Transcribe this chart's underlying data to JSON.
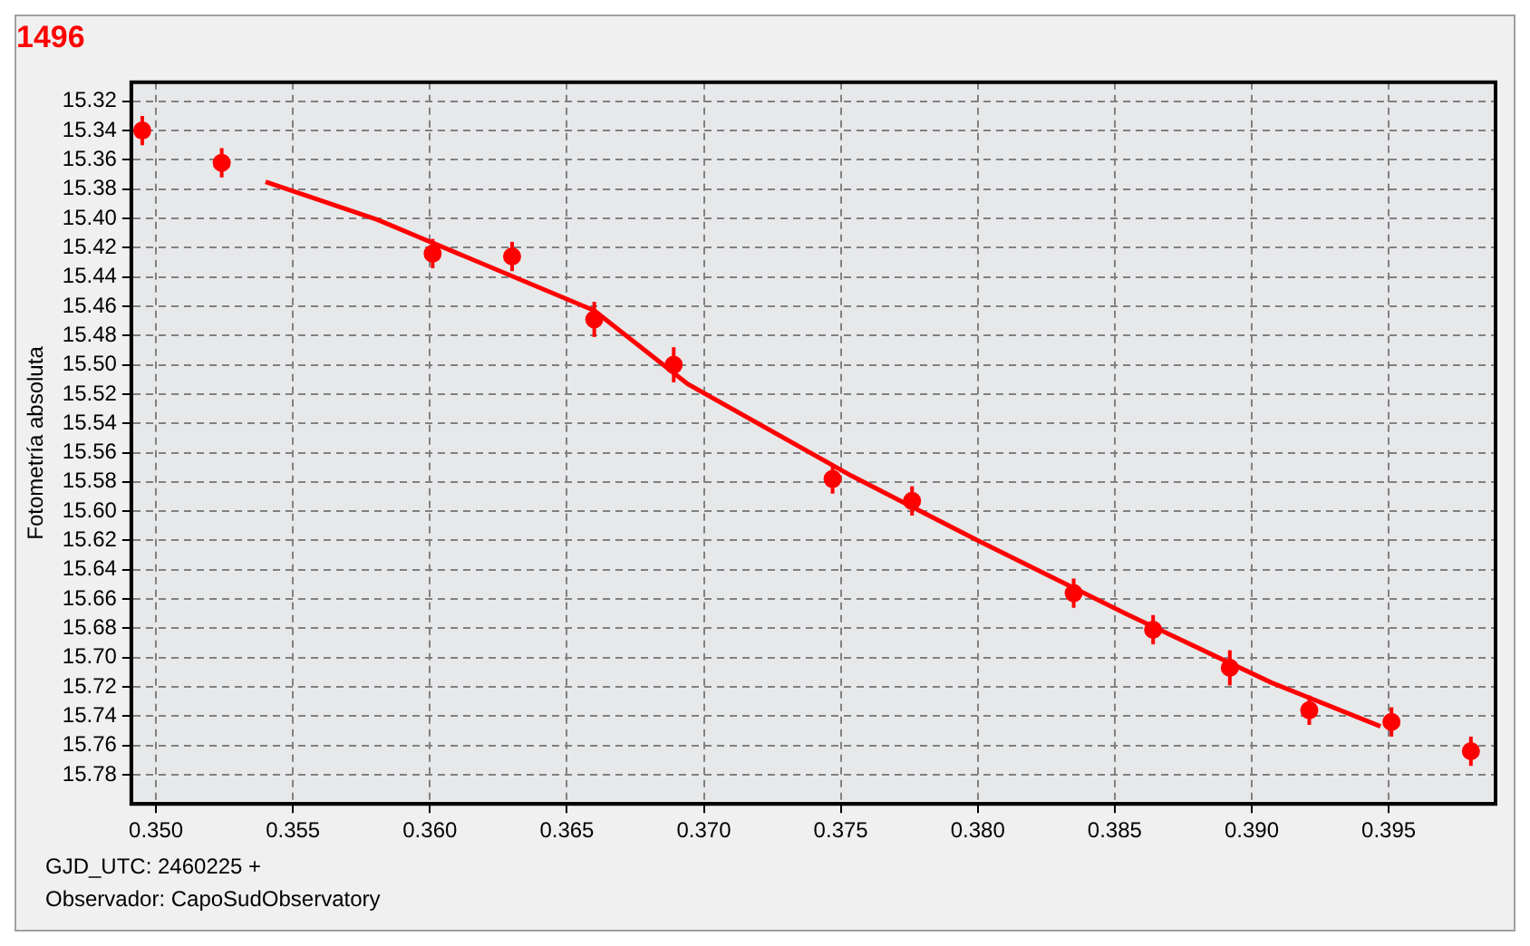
{
  "chart_data": {
    "type": "scatter",
    "title": "1496",
    "ylabel": "Fotometría absoluta",
    "annotations": [
      "GJD_UTC: 2460225 +",
      "Observador: CapoSudObservatory"
    ],
    "xlim": [
      0.3491,
      0.3989
    ],
    "xticks": [
      {
        "value": 0.35,
        "label": "0.350"
      },
      0.355,
      {
        "value": 0.36,
        "label": "0.360"
      },
      0.365,
      {
        "value": 0.37,
        "label": "0.370"
      },
      0.375,
      {
        "value": 0.38,
        "label": "0.380"
      },
      0.385,
      {
        "value": 0.39,
        "label": "0.390"
      },
      0.395
    ],
    "ylim": [
      15.8,
      15.307
    ],
    "yticks": [
      15.32,
      15.34,
      15.36,
      15.38,
      {
        "value": 15.4,
        "label": "15.40"
      },
      15.42,
      15.44,
      15.46,
      15.48,
      {
        "value": 15.5,
        "label": "15.50"
      },
      15.52,
      15.54,
      15.56,
      15.58,
      {
        "value": 15.6,
        "label": "15.60"
      },
      15.62,
      15.64,
      15.66,
      15.68,
      {
        "value": 15.7,
        "label": "15.70"
      },
      15.72,
      15.74,
      15.76,
      15.78
    ],
    "grid": true,
    "legend": false,
    "series": [
      {
        "color": "#ff0000",
        "marker": "circle",
        "x": [
          0.3495,
          0.3524,
          0.3601,
          0.363,
          0.366,
          0.3689,
          0.3747,
          0.3776,
          0.3835,
          0.3864,
          0.3892,
          0.3921,
          0.3951,
          0.398
        ],
        "values": [
          15.34,
          15.362,
          15.424,
          15.426,
          15.469,
          15.5,
          15.578,
          15.593,
          15.656,
          15.681,
          15.707,
          15.736,
          15.744,
          15.764
        ],
        "errors": [
          0.01,
          0.01,
          0.01,
          0.01,
          0.012,
          0.012,
          0.01,
          0.01,
          0.01,
          0.01,
          0.012,
          0.01,
          0.01,
          0.01
        ]
      },
      {
        "type": "line",
        "color": "#ff0000",
        "marker": "none",
        "x": [
          0.354,
          0.3581,
          0.366,
          0.3694,
          0.3754,
          0.38,
          0.3854,
          0.3907,
          0.3947
        ],
        "values": [
          15.375,
          15.401,
          15.463,
          15.513,
          15.576,
          15.62,
          15.67,
          15.717,
          15.747
        ]
      }
    ]
  }
}
